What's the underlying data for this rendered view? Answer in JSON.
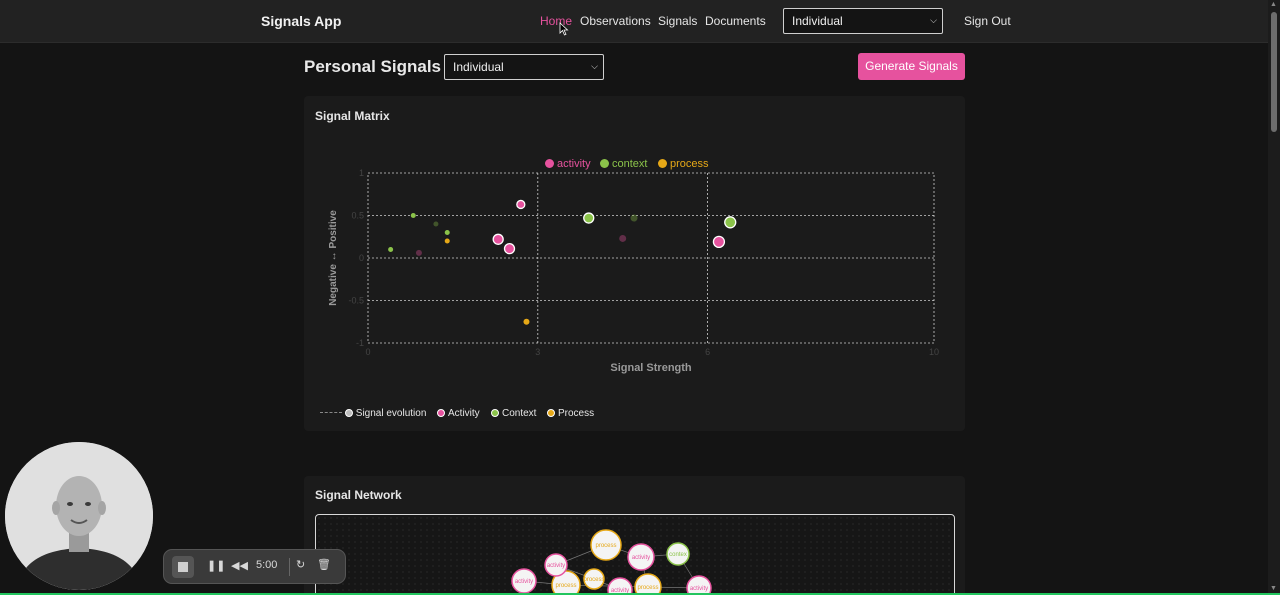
{
  "app": {
    "brand": "Signals App"
  },
  "nav": {
    "links": [
      {
        "label": "Home",
        "active": true
      },
      {
        "label": "Observations"
      },
      {
        "label": "Signals"
      },
      {
        "label": "Documents"
      }
    ],
    "scope_select": "Individual",
    "sign_out": "Sign Out"
  },
  "header": {
    "title": "Personal Signals",
    "scope_select": "Individual",
    "generate_button": "Generate Signals"
  },
  "matrix": {
    "title": "Signal Matrix",
    "legend_top": [
      {
        "label": "activity",
        "color": "#e6529e"
      },
      {
        "label": "context",
        "color": "#8bc34a"
      },
      {
        "label": "process",
        "color": "#e6a817"
      }
    ],
    "legend_bottom": {
      "evolution": "Signal evolution",
      "activity": "Activity",
      "context": "Context",
      "process": "Process"
    },
    "icons": [
      "cursor-icon"
    ]
  },
  "chart_data": {
    "type": "scatter",
    "xlabel": "Signal Strength",
    "ylabel": "Negative ↔ Positive",
    "xlim": [
      0,
      10
    ],
    "ylim": [
      -1,
      1
    ],
    "x_ticks": [
      "0",
      "3",
      "6",
      "10"
    ],
    "y_ticks": [
      "1",
      "0.5",
      "0",
      "-0.5",
      "-1"
    ],
    "grid": true,
    "legend": "top",
    "series": [
      {
        "name": "activity",
        "color": "#e6529e",
        "points": [
          {
            "x": 2.7,
            "y": 0.63,
            "r": 4
          },
          {
            "x": 2.3,
            "y": 0.22,
            "r": 5
          },
          {
            "x": 2.5,
            "y": 0.11,
            "r": 5
          },
          {
            "x": 6.2,
            "y": 0.19,
            "r": 5.5
          },
          {
            "x": 4.5,
            "y": 0.23,
            "r": 3.5,
            "faded": true
          },
          {
            "x": 0.9,
            "y": 0.06,
            "r": 3,
            "faded": true
          }
        ]
      },
      {
        "name": "context",
        "color": "#8bc34a",
        "points": [
          {
            "x": 0.8,
            "y": 0.5,
            "r": 2.5
          },
          {
            "x": 0.4,
            "y": 0.1,
            "r": 2.5
          },
          {
            "x": 1.4,
            "y": 0.3,
            "r": 2.5
          },
          {
            "x": 3.9,
            "y": 0.47,
            "r": 5
          },
          {
            "x": 6.4,
            "y": 0.42,
            "r": 5.5
          },
          {
            "x": 1.2,
            "y": 0.4,
            "r": 2.5,
            "faded": true
          },
          {
            "x": 4.7,
            "y": 0.47,
            "r": 3.5,
            "faded": true
          }
        ]
      },
      {
        "name": "process",
        "color": "#e6a817",
        "points": [
          {
            "x": 1.4,
            "y": 0.2,
            "r": 2.5
          },
          {
            "x": 2.8,
            "y": -0.75,
            "r": 3
          }
        ]
      }
    ]
  },
  "network": {
    "title": "Signal Network",
    "nodes": [
      {
        "label": "process",
        "color": "#e6a817"
      },
      {
        "label": "activity",
        "color": "#e6529e"
      },
      {
        "label": "contex",
        "color": "#8bc34a"
      },
      {
        "label": "activity",
        "color": "#e6529e"
      },
      {
        "label": "process",
        "color": "#e6a817"
      },
      {
        "label": "activity",
        "color": "#e6529e"
      },
      {
        "label": "process",
        "color": "#e6a817"
      },
      {
        "label": "activity",
        "color": "#e6529e"
      },
      {
        "label": "process",
        "color": "#e6a817"
      },
      {
        "label": "activity",
        "color": "#e6529e"
      }
    ]
  },
  "recorder": {
    "time": "5:00"
  }
}
